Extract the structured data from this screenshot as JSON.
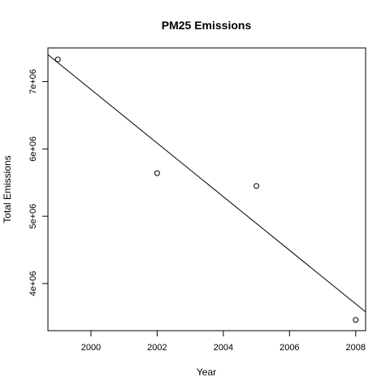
{
  "chart_data": {
    "type": "scatter",
    "title": "PM25 Emissions",
    "xlabel": "Year",
    "ylabel": "Total Emissions",
    "xlim": [
      1998.7,
      2008.3
    ],
    "ylim": [
      3300000,
      7500000
    ],
    "x_ticks": [
      2000,
      2002,
      2004,
      2006,
      2008
    ],
    "x_tick_labels": [
      "2000",
      "2002",
      "2004",
      "2006",
      "2008"
    ],
    "y_ticks": [
      4000000,
      5000000,
      6000000,
      7000000
    ],
    "y_tick_labels": [
      "4e+06",
      "5e+06",
      "6e+06",
      "7e+06"
    ],
    "series": [
      {
        "x": [
          1999,
          2002,
          2005,
          2008
        ],
        "y": [
          7330000,
          5640000,
          5450000,
          3460000
        ],
        "marker": "open-circle"
      }
    ],
    "trend_line": {
      "intercept_at_1998.7": 7400000,
      "slope": -398000
    },
    "grid": false,
    "legend": "none",
    "colors": {
      "background": "#ffffff",
      "foreground": "#000000"
    }
  }
}
